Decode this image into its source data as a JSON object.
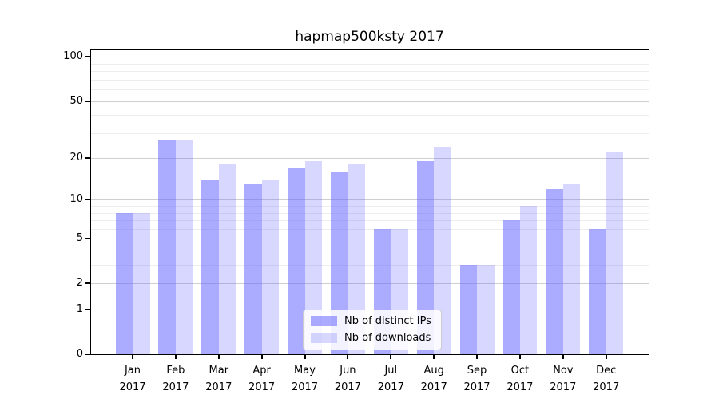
{
  "title": "hapmap500ksty 2017",
  "colors": {
    "bar_ips": "rgba(102,102,255,0.55)",
    "bar_downloads": "rgba(102,102,255,0.26)",
    "bar_ips_hex_on_white": "#a9a9f8",
    "bar_downloads_hex_on_white": "#d8d8f8",
    "major_grid": "#cfcfcf",
    "minor_grid": "#ededed",
    "axis": "#000000"
  },
  "chart_data": {
    "type": "bar",
    "title": "hapmap500ksty 2017",
    "categories": [
      "Jan",
      "Feb",
      "Mar",
      "Apr",
      "May",
      "Jun",
      "Jul",
      "Aug",
      "Sep",
      "Oct",
      "Nov",
      "Dec"
    ],
    "x_tick_year": "2017",
    "series": [
      {
        "name": "Nb of distinct IPs",
        "color": "rgba(102,102,255,0.55)",
        "values": [
          8,
          27,
          14,
          13,
          17,
          16,
          6,
          19,
          3,
          7,
          12,
          6
        ]
      },
      {
        "name": "Nb of downloads",
        "color": "rgba(102,102,255,0.26)",
        "values": [
          8,
          27,
          18,
          14,
          19,
          18,
          6,
          24,
          3,
          9,
          13,
          22
        ]
      }
    ],
    "xlabel": "",
    "ylabel": "",
    "y_scale": "log10(1+v)",
    "ylim": [
      0,
      112
    ],
    "y_major_ticks": [
      0,
      1,
      2,
      5,
      10,
      20,
      50,
      100
    ],
    "y_major_tick_labels": [
      "0",
      "1",
      "2",
      "5",
      "10",
      "20",
      "50",
      "100"
    ],
    "y_minor_ticks": [
      3,
      4,
      6,
      7,
      8,
      9,
      30,
      40,
      60,
      70,
      80,
      90
    ],
    "grid": "on",
    "legend_position": "lower center"
  }
}
